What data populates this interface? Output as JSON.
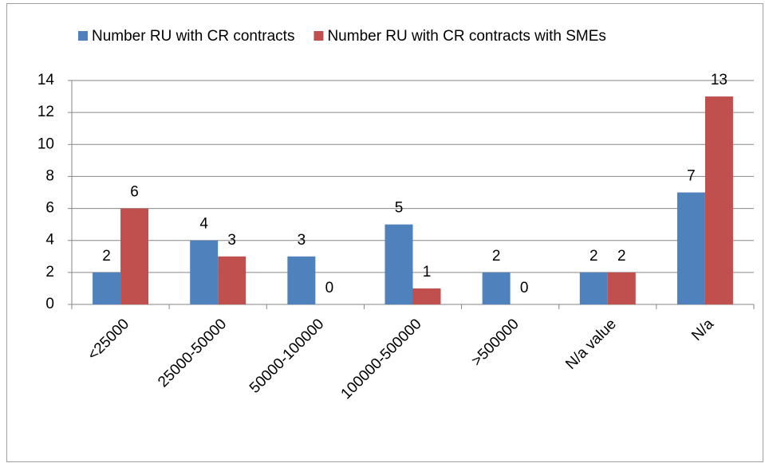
{
  "chart_data": {
    "type": "bar",
    "categories": [
      "<25000",
      "25000-50000",
      "50000-100000",
      "100000-500000",
      ">500000",
      "N/a value",
      "N/a"
    ],
    "series": [
      {
        "name": "Number RU with CR contracts",
        "color": "#4f81bd",
        "values": [
          2,
          4,
          3,
          5,
          2,
          2,
          7
        ]
      },
      {
        "name": "Number RU with CR contracts with SMEs",
        "color": "#c0504d",
        "values": [
          6,
          3,
          0,
          1,
          0,
          2,
          13
        ]
      }
    ],
    "ylim": [
      0,
      14
    ],
    "yticks": [
      0,
      2,
      4,
      6,
      8,
      10,
      12,
      14
    ],
    "grid": true,
    "legend": "top"
  }
}
